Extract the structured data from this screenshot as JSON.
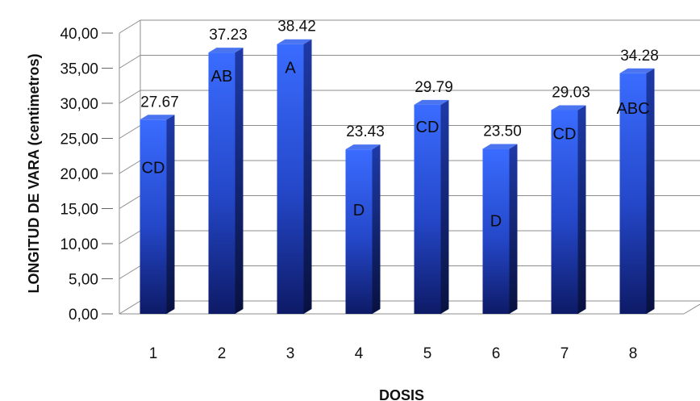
{
  "chart_data": {
    "type": "bar",
    "title": "",
    "xlabel": "DOSIS",
    "ylabel": "LONGITUD DE VARA (centimetros)",
    "ylim": [
      0,
      40
    ],
    "yticks": [
      "0,00",
      "5,00",
      "10,00",
      "15,00",
      "20,00",
      "25,00",
      "30,00",
      "35,00",
      "40,00"
    ],
    "categories": [
      "1",
      "2",
      "3",
      "4",
      "5",
      "6",
      "7",
      "8"
    ],
    "values": [
      27.67,
      37.23,
      38.42,
      23.43,
      29.79,
      23.5,
      29.03,
      34.28
    ],
    "value_labels": [
      "27.67",
      "37.23",
      "38.42",
      "23.43",
      "29.79",
      "23.50",
      "29.03",
      "34.28"
    ],
    "group_labels": [
      "CD",
      "AB",
      "A",
      "D",
      "CD",
      "D",
      "CD",
      "ABC"
    ],
    "grid": true,
    "legend": "none",
    "style": "3d-column",
    "bar_color": "#2f5fe8"
  }
}
